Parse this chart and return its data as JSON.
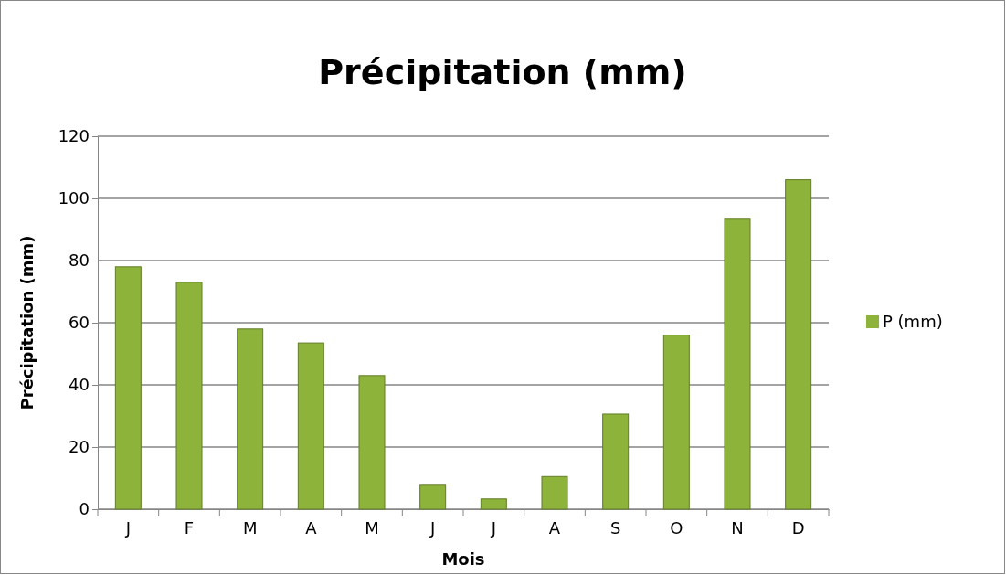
{
  "chart_data": {
    "type": "bar",
    "title": "Précipitation (mm)",
    "xlabel": "Mois",
    "ylabel": "Précipitation (mm)",
    "categories": [
      "J",
      "F",
      "M",
      "A",
      "M",
      "J",
      "J",
      "A",
      "S",
      "O",
      "N",
      "D"
    ],
    "series": [
      {
        "name": "P (mm)",
        "color": "#8db33a",
        "values": [
          78,
          73,
          58,
          53.5,
          43,
          7.7,
          3.3,
          10.5,
          30.6,
          56,
          93.3,
          106
        ]
      }
    ],
    "ylim": [
      0,
      120
    ],
    "yticks": [
      0,
      20,
      40,
      60,
      80,
      100,
      120
    ],
    "grid": "y",
    "legend": "right"
  }
}
